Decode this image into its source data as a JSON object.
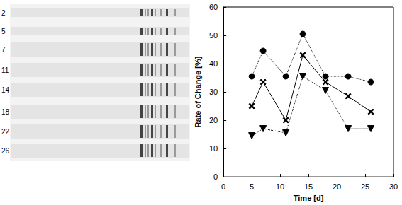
{
  "chart_data": {
    "type": "line",
    "x_label": "Time [d]",
    "y_label": "Rate of Change [%]",
    "x": [
      5,
      7,
      11,
      14,
      18,
      22,
      26
    ],
    "series": [
      {
        "color": "#000000",
        "marker": "circle",
        "line_style": "dotted",
        "values": [
          35.5,
          44.5,
          35.5,
          50.5,
          35.5,
          35.5,
          33.5
        ]
      },
      {
        "color": "#000000",
        "marker": "x",
        "line_style": "solid",
        "values": [
          25,
          33.5,
          20,
          43,
          33.5,
          28.5,
          23
        ]
      },
      {
        "color": "#000000",
        "marker": "triangle_down",
        "line_style": "dotted",
        "values": [
          14.5,
          17,
          15.5,
          35.5,
          30.5,
          17,
          17
        ]
      }
    ],
    "xlim": [
      0,
      30
    ],
    "xticks": [
      0,
      5,
      10,
      15,
      20,
      25,
      30
    ],
    "ylim": [
      0,
      60
    ],
    "yticks": [
      0,
      10,
      20,
      30,
      40,
      50,
      60
    ],
    "grid": false
  },
  "gel": {
    "lanes": [
      "2",
      "5",
      "7",
      "11",
      "14",
      "18",
      "22",
      "26"
    ]
  }
}
